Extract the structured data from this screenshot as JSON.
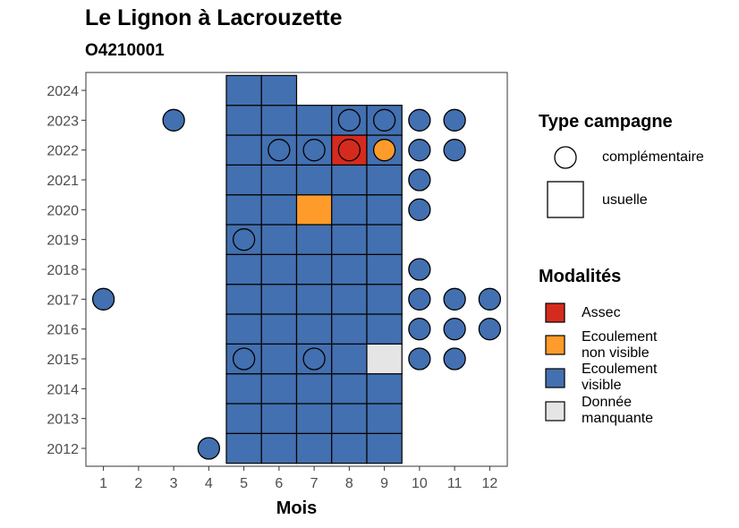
{
  "chart_data": {
    "type": "heatmap",
    "title": "Le Lignon à Lacrouzette",
    "subtitle": "O4210001",
    "xlabel": "Mois",
    "ylabel": "",
    "x_ticks": [
      1,
      2,
      3,
      4,
      5,
      6,
      7,
      8,
      9,
      10,
      11,
      12
    ],
    "y_ticks": [
      2012,
      2013,
      2014,
      2015,
      2016,
      2017,
      2018,
      2019,
      2020,
      2021,
      2022,
      2023,
      2024
    ],
    "xlim": [
      0.5,
      12.5
    ],
    "ylim": [
      2011.4,
      2024.6
    ],
    "colors": {
      "Assec": "#d52b1e",
      "Ecoulement non visible": "#fe9b2a",
      "Ecoulement visible": "#4370b0",
      "Donnée manquante": "#e5e5e5"
    },
    "usuelle": [
      {
        "year": 2012,
        "values": {
          "5": "Ecoulement visible",
          "6": "Ecoulement visible",
          "7": "Ecoulement visible",
          "8": "Ecoulement visible",
          "9": "Ecoulement visible"
        }
      },
      {
        "year": 2013,
        "values": {
          "5": "Ecoulement visible",
          "6": "Ecoulement visible",
          "7": "Ecoulement visible",
          "8": "Ecoulement visible",
          "9": "Ecoulement visible"
        }
      },
      {
        "year": 2014,
        "values": {
          "5": "Ecoulement visible",
          "6": "Ecoulement visible",
          "7": "Ecoulement visible",
          "8": "Ecoulement visible",
          "9": "Ecoulement visible"
        }
      },
      {
        "year": 2015,
        "values": {
          "5": "Ecoulement visible",
          "6": "Ecoulement visible",
          "7": "Ecoulement visible",
          "8": "Ecoulement visible",
          "9": "Donnée manquante"
        }
      },
      {
        "year": 2016,
        "values": {
          "5": "Ecoulement visible",
          "6": "Ecoulement visible",
          "7": "Ecoulement visible",
          "8": "Ecoulement visible",
          "9": "Ecoulement visible"
        }
      },
      {
        "year": 2017,
        "values": {
          "5": "Ecoulement visible",
          "6": "Ecoulement visible",
          "7": "Ecoulement visible",
          "8": "Ecoulement visible",
          "9": "Ecoulement visible"
        }
      },
      {
        "year": 2018,
        "values": {
          "5": "Ecoulement visible",
          "6": "Ecoulement visible",
          "7": "Ecoulement visible",
          "8": "Ecoulement visible",
          "9": "Ecoulement visible"
        }
      },
      {
        "year": 2019,
        "values": {
          "5": "Ecoulement visible",
          "6": "Ecoulement visible",
          "7": "Ecoulement visible",
          "8": "Ecoulement visible",
          "9": "Ecoulement visible"
        }
      },
      {
        "year": 2020,
        "values": {
          "5": "Ecoulement visible",
          "6": "Ecoulement visible",
          "7": "Ecoulement non visible",
          "8": "Ecoulement visible",
          "9": "Ecoulement visible"
        }
      },
      {
        "year": 2021,
        "values": {
          "5": "Ecoulement visible",
          "6": "Ecoulement visible",
          "7": "Ecoulement visible",
          "8": "Ecoulement visible",
          "9": "Ecoulement visible"
        }
      },
      {
        "year": 2022,
        "values": {
          "5": "Ecoulement visible",
          "6": "Ecoulement visible",
          "7": "Ecoulement visible",
          "8": "Assec",
          "9": "Ecoulement visible"
        }
      },
      {
        "year": 2023,
        "values": {
          "5": "Ecoulement visible",
          "6": "Ecoulement visible",
          "7": "Ecoulement visible",
          "8": "Ecoulement visible",
          "9": "Ecoulement visible"
        }
      },
      {
        "year": 2024,
        "values": {
          "5": "Ecoulement visible",
          "6": "Ecoulement visible"
        }
      }
    ],
    "complementaire": [
      {
        "year": 2023,
        "month": 3,
        "value": "Ecoulement visible"
      },
      {
        "year": 2023,
        "month": 8,
        "value": "Ecoulement visible"
      },
      {
        "year": 2023,
        "month": 9,
        "value": "Ecoulement visible"
      },
      {
        "year": 2023,
        "month": 10,
        "value": "Ecoulement visible"
      },
      {
        "year": 2023,
        "month": 11,
        "value": "Ecoulement visible"
      },
      {
        "year": 2022,
        "month": 6,
        "value": "Ecoulement visible"
      },
      {
        "year": 2022,
        "month": 7,
        "value": "Ecoulement visible"
      },
      {
        "year": 2022,
        "month": 8,
        "value": "Assec"
      },
      {
        "year": 2022,
        "month": 9,
        "value": "Ecoulement non visible"
      },
      {
        "year": 2022,
        "month": 10,
        "value": "Ecoulement visible"
      },
      {
        "year": 2022,
        "month": 11,
        "value": "Ecoulement visible"
      },
      {
        "year": 2021,
        "month": 10,
        "value": "Ecoulement visible"
      },
      {
        "year": 2020,
        "month": 10,
        "value": "Ecoulement visible"
      },
      {
        "year": 2019,
        "month": 5,
        "value": "Ecoulement visible"
      },
      {
        "year": 2018,
        "month": 10,
        "value": "Ecoulement visible"
      },
      {
        "year": 2017,
        "month": 1,
        "value": "Ecoulement visible"
      },
      {
        "year": 2017,
        "month": 10,
        "value": "Ecoulement visible"
      },
      {
        "year": 2017,
        "month": 11,
        "value": "Ecoulement visible"
      },
      {
        "year": 2017,
        "month": 12,
        "value": "Ecoulement visible"
      },
      {
        "year": 2016,
        "month": 10,
        "value": "Ecoulement visible"
      },
      {
        "year": 2016,
        "month": 11,
        "value": "Ecoulement visible"
      },
      {
        "year": 2016,
        "month": 12,
        "value": "Ecoulement visible"
      },
      {
        "year": 2015,
        "month": 5,
        "value": "Ecoulement visible"
      },
      {
        "year": 2015,
        "month": 7,
        "value": "Ecoulement visible"
      },
      {
        "year": 2015,
        "month": 10,
        "value": "Ecoulement visible"
      },
      {
        "year": 2015,
        "month": 11,
        "value": "Ecoulement visible"
      },
      {
        "year": 2012,
        "month": 4,
        "value": "Ecoulement visible"
      }
    ],
    "legend": {
      "type_title": "Type campagne",
      "type_items": [
        {
          "shape": "circle",
          "label": "complémentaire"
        },
        {
          "shape": "square",
          "label": "usuelle"
        }
      ],
      "modalites_title": "Modalités",
      "modalites_items": [
        {
          "key": "Assec",
          "label_lines": [
            "Assec"
          ]
        },
        {
          "key": "Ecoulement non visible",
          "label_lines": [
            "Ecoulement",
            "non visible"
          ]
        },
        {
          "key": "Ecoulement visible",
          "label_lines": [
            "Ecoulement",
            "visible"
          ]
        },
        {
          "key": "Donnée manquante",
          "label_lines": [
            "Donnée",
            "manquante"
          ]
        }
      ]
    }
  }
}
